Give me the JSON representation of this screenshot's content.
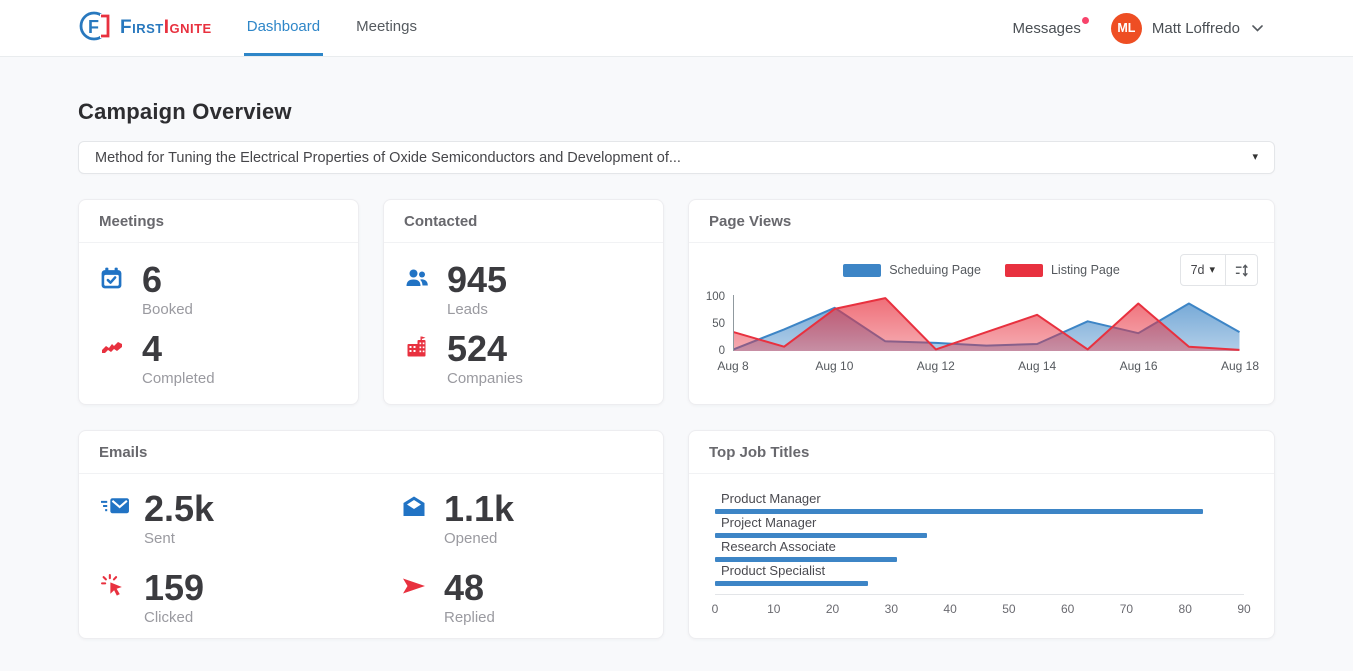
{
  "header": {
    "brand": {
      "first": "First",
      "ignite": "Ignite"
    },
    "nav": [
      {
        "label": "Dashboard",
        "active": true
      },
      {
        "label": "Meetings",
        "active": false
      }
    ],
    "messages_label": "Messages",
    "user": {
      "initials": "ML",
      "name": "Matt Loffredo"
    }
  },
  "icons": {
    "caret_down": "▾"
  },
  "page": {
    "title": "Campaign Overview",
    "campaign_select": {
      "value": "Method for Tuning the Electrical Properties of Oxide Semiconductors and Development of..."
    }
  },
  "cards": {
    "meetings": {
      "title": "Meetings",
      "stats": [
        {
          "icon": "calendar-check-icon",
          "value": "6",
          "label": "Booked"
        },
        {
          "icon": "handshake-icon",
          "value": "4",
          "label": "Completed"
        }
      ]
    },
    "contacted": {
      "title": "Contacted",
      "stats": [
        {
          "icon": "users-icon",
          "value": "945",
          "label": "Leads"
        },
        {
          "icon": "building-icon",
          "value": "524",
          "label": "Companies"
        }
      ]
    },
    "page_views": {
      "title": "Page Views",
      "range_label": "7d"
    },
    "emails": {
      "title": "Emails",
      "stats": [
        {
          "icon": "mail-send-icon",
          "value": "2.5k",
          "label": "Sent"
        },
        {
          "icon": "mail-open-icon",
          "value": "1.1k",
          "label": "Opened"
        },
        {
          "icon": "cursor-click-icon",
          "value": "159",
          "label": "Clicked"
        },
        {
          "icon": "paper-plane-icon",
          "value": "48",
          "label": "Replied"
        }
      ]
    },
    "top_job_titles": {
      "title": "Top Job Titles"
    }
  },
  "colors": {
    "accent_blue": "#2e86c8",
    "accent_red": "#e8313f",
    "avatar_orange": "#ee4e23",
    "notification_pink": "#f8436b"
  },
  "chart_data": [
    {
      "type": "area",
      "title": "Page Views",
      "x": [
        "Aug 8",
        "Aug 9",
        "Aug 10",
        "Aug 11",
        "Aug 12",
        "Aug 13",
        "Aug 14",
        "Aug 15",
        "Aug 16",
        "Aug 17",
        "Aug 18"
      ],
      "x_tick_labels": [
        "Aug 8",
        "Aug 10",
        "Aug 12",
        "Aug 14",
        "Aug 16",
        "Aug 18"
      ],
      "series": [
        {
          "name": "Scheduing Page",
          "color": "#3d85c6",
          "values": [
            3,
            40,
            80,
            18,
            15,
            10,
            13,
            55,
            33,
            88,
            35
          ]
        },
        {
          "name": "Listing Page",
          "color": "#e8313f",
          "values": [
            35,
            8,
            78,
            98,
            3,
            35,
            67,
            3,
            88,
            8,
            2
          ]
        }
      ],
      "ylim": [
        0,
        100
      ],
      "yticks": [
        0,
        50,
        100
      ],
      "legend_position": "top",
      "grid": false
    },
    {
      "type": "bar",
      "orientation": "horizontal",
      "title": "Top Job Titles",
      "categories": [
        "Product Manager",
        "Project Manager",
        "Research Associate",
        "Product Specialist"
      ],
      "values": [
        83,
        36,
        31,
        26
      ],
      "xlim": [
        0,
        90
      ],
      "xticks": [
        0,
        10,
        20,
        30,
        40,
        50,
        60,
        70,
        80,
        90
      ],
      "bar_color": "#3d85c6"
    }
  ]
}
